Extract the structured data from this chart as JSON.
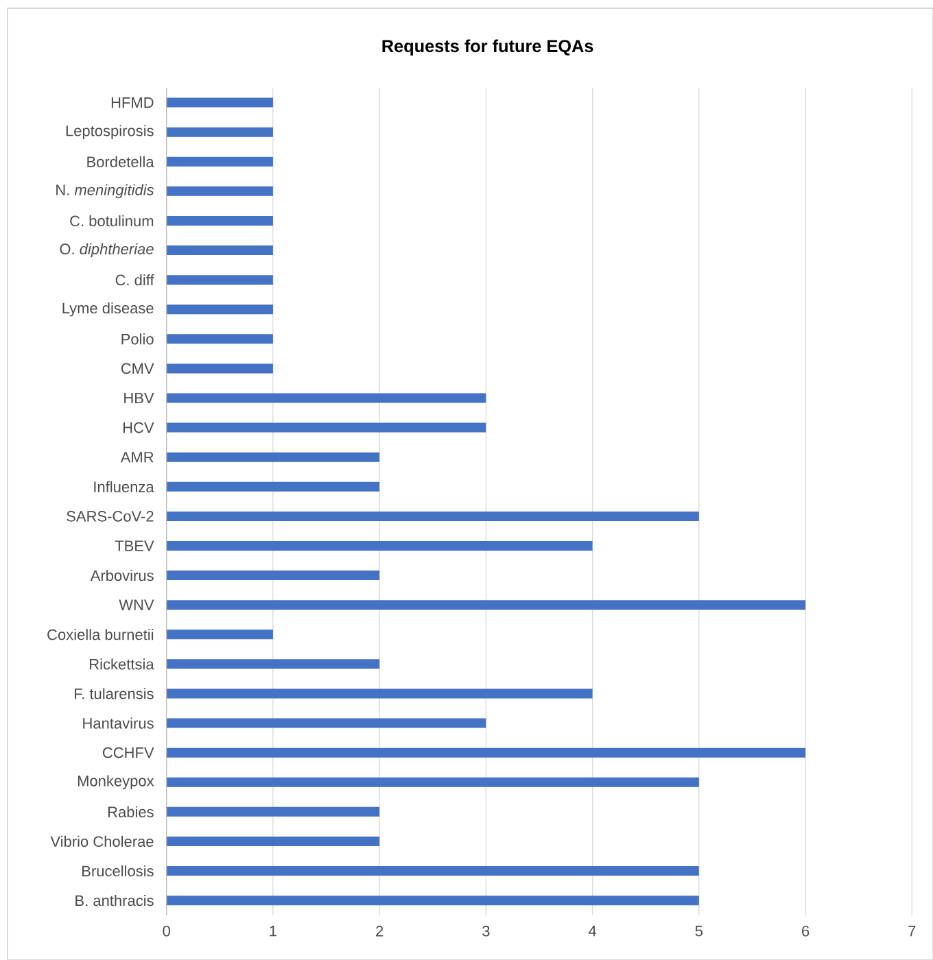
{
  "chart_data": {
    "type": "bar",
    "orientation": "horizontal",
    "title": "Requests for future EQAs",
    "categories": [
      "HFMD",
      "Leptospirosis",
      "Bordetella",
      "N. *meningitidis*",
      "C. botulinum",
      "O. *diphtheriae*",
      "C. diff",
      "Lyme disease",
      "Polio",
      "CMV",
      "HBV",
      "HCV",
      "AMR",
      "Influenza",
      "SARS-CoV-2",
      "TBEV",
      "Arbovirus",
      "WNV",
      "Coxiella burnetii",
      "Rickettsia",
      "F. tularensis",
      "Hantavirus",
      "CCHFV",
      "Monkeypox",
      "Rabies",
      "Vibrio Cholerae",
      "Brucellosis",
      "B. anthracis"
    ],
    "values": [
      1,
      1,
      1,
      1,
      1,
      1,
      1,
      1,
      1,
      1,
      3,
      3,
      2,
      2,
      5,
      4,
      2,
      6,
      1,
      2,
      4,
      3,
      6,
      5,
      2,
      2,
      5,
      5
    ],
    "color": "#4472c4",
    "xlim": [
      0,
      7
    ],
    "xticks": [
      0,
      1,
      2,
      3,
      4,
      5,
      6,
      7
    ],
    "grid": "x"
  }
}
